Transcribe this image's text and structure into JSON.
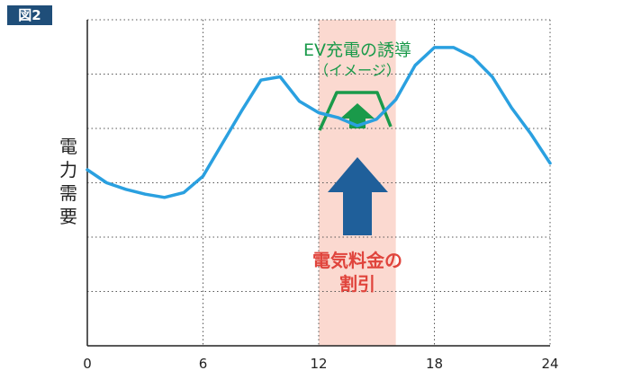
{
  "figure_label": "図2",
  "chart_data": {
    "type": "line",
    "ylabel": "電力需要",
    "xlabel": "",
    "x_ticks": [
      "0",
      "6",
      "12",
      "18",
      "24"
    ],
    "xlim": [
      0,
      24
    ],
    "ylim": [
      0,
      100
    ],
    "grid": "dotted horizontal and vertical",
    "highlight_band": {
      "x_start": 12,
      "x_end": 16,
      "color": "#fbd9d0"
    },
    "series": [
      {
        "color": "#2aa0e0",
        "x": [
          0,
          1,
          2,
          3,
          4,
          5,
          6,
          7,
          8,
          9,
          10,
          11,
          12,
          13,
          14,
          15,
          16,
          17,
          18,
          19,
          20,
          21,
          22,
          23,
          24
        ],
        "y": [
          54,
          50,
          48,
          46.5,
          45.5,
          47,
          52,
          62,
          72,
          81.5,
          82.5,
          75,
          71.5,
          70,
          67.5,
          69.5,
          75.5,
          86,
          91.5,
          91.5,
          88.5,
          82.5,
          73,
          65,
          56
        ]
      }
    ],
    "annotations": {
      "ev_title": "EV充電の誘導",
      "ev_subtitle": "（イメージ）",
      "price_line1": "電気料金の",
      "price_line2": "割引"
    }
  }
}
